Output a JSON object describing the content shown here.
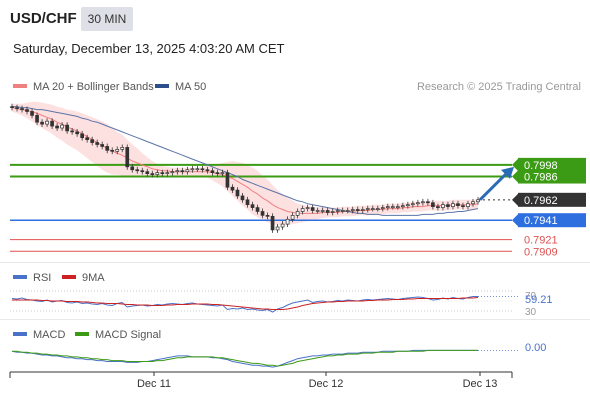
{
  "header": {
    "symbol": "USD/CHF",
    "timeframe": "30 MIN",
    "datetime": "Saturday, December 13, 2025 4:03:20 AM CET"
  },
  "legend_main": [
    {
      "label": "MA 20 + Bollinger Bands",
      "color": "#f08080"
    },
    {
      "label": "MA 50",
      "color": "#2c4f8c"
    }
  ],
  "credit": "Research © 2025 Trading Central",
  "levels": [
    {
      "value": 0.7998,
      "label": "0.7998",
      "kind": "resistance",
      "color": "#3c9b14"
    },
    {
      "value": 0.7986,
      "label": "0.7986",
      "kind": "resistance",
      "color": "#3c9b14"
    },
    {
      "value": 0.7962,
      "label": "0.7962",
      "kind": "last",
      "color": "#333333"
    },
    {
      "value": 0.7941,
      "label": "0.7941",
      "kind": "pivot",
      "color": "#2e6fe0"
    },
    {
      "value": 0.7921,
      "label": "0.7921",
      "kind": "support",
      "color": "#e05050"
    },
    {
      "value": 0.7909,
      "label": "0.7909",
      "kind": "support",
      "color": "#e05050"
    }
  ],
  "rsi_panel": {
    "legend": [
      {
        "label": "RSI",
        "color": "#4a72c8"
      },
      {
        "label": "9MA",
        "color": "#cc2222"
      }
    ],
    "level_labels": [
      "70",
      "30"
    ],
    "value_label": "59.21"
  },
  "macd_panel": {
    "legend": [
      {
        "label": "MACD",
        "color": "#4a72c8"
      },
      {
        "label": "MACD Signal",
        "color": "#3c9b14"
      }
    ],
    "value_label": "0.00"
  },
  "x_axis": {
    "labels": [
      "Dec 11",
      "Dec 12",
      "Dec 13"
    ]
  },
  "chart_data": [
    {
      "type": "candlestick",
      "title": "USD/CHF",
      "ylim": [
        0.79,
        0.807
      ],
      "close": [
        0.8057,
        0.8056,
        0.8055,
        0.8053,
        0.8049,
        0.8042,
        0.804,
        0.8043,
        0.8038,
        0.8036,
        0.8039,
        0.8033,
        0.8032,
        0.803,
        0.8026,
        0.8024,
        0.8021,
        0.8019,
        0.8017,
        0.8013,
        0.8012,
        0.8014,
        0.8016,
        0.7996,
        0.7993,
        0.7992,
        0.7991,
        0.7989,
        0.7988,
        0.799,
        0.7989,
        0.799,
        0.7991,
        0.7992,
        0.7991,
        0.7993,
        0.7994,
        0.7994,
        0.7993,
        0.7992,
        0.799,
        0.7989,
        0.799,
        0.7975,
        0.7972,
        0.7966,
        0.7962,
        0.7957,
        0.7954,
        0.795,
        0.7946,
        0.7945,
        0.7931,
        0.7934,
        0.7937,
        0.7942,
        0.7946,
        0.795,
        0.7953,
        0.7954,
        0.7951,
        0.7951,
        0.7951,
        0.7949,
        0.795,
        0.7951,
        0.7951,
        0.7951,
        0.7952,
        0.7951,
        0.7952,
        0.7953,
        0.7953,
        0.7953,
        0.7954,
        0.7955,
        0.7955,
        0.7955,
        0.7956,
        0.7957,
        0.7958,
        0.7959,
        0.796,
        0.7959,
        0.7955,
        0.7954,
        0.7957,
        0.7955,
        0.7958,
        0.7956,
        0.7955,
        0.7958,
        0.796,
        0.7962
      ],
      "ma20": [
        0.8057,
        0.8056,
        0.8055,
        0.8054,
        0.8053,
        0.8051,
        0.8049,
        0.8047,
        0.8045,
        0.8042,
        0.804,
        0.8037,
        0.8035,
        0.8033,
        0.803,
        0.8027,
        0.8024,
        0.8021,
        0.8018,
        0.8015,
        0.8012,
        0.801,
        0.8008,
        0.8005,
        0.8002,
        0.8,
        0.7998,
        0.7996,
        0.7994,
        0.7993,
        0.7992,
        0.7992,
        0.7991,
        0.7991,
        0.7991,
        0.7991,
        0.7991,
        0.7991,
        0.7991,
        0.7991,
        0.799,
        0.7989,
        0.7988,
        0.7986,
        0.7984,
        0.7981,
        0.7978,
        0.7975,
        0.7971,
        0.7968,
        0.7964,
        0.7961,
        0.7957,
        0.7954,
        0.7952,
        0.795,
        0.7949,
        0.7948,
        0.7948,
        0.7948,
        0.7948,
        0.7948,
        0.7949,
        0.7949,
        0.7949,
        0.7949,
        0.795,
        0.795,
        0.795,
        0.7951,
        0.7951,
        0.7951,
        0.7952,
        0.7952,
        0.7952,
        0.7953,
        0.7953,
        0.7953,
        0.7954,
        0.7954,
        0.7955,
        0.7955,
        0.7955,
        0.7956,
        0.7956,
        0.7956,
        0.7956,
        0.7956,
        0.7957,
        0.7957,
        0.7957,
        0.7957,
        0.7957,
        0.7958
      ],
      "ma50": [
        0.8058,
        0.8058,
        0.8057,
        0.8057,
        0.8056,
        0.8055,
        0.8055,
        0.8054,
        0.8053,
        0.8052,
        0.8051,
        0.805,
        0.8049,
        0.8048,
        0.8046,
        0.8045,
        0.8043,
        0.8042,
        0.804,
        0.8038,
        0.8036,
        0.8034,
        0.8032,
        0.803,
        0.8028,
        0.8026,
        0.8024,
        0.8022,
        0.802,
        0.8018,
        0.8016,
        0.8014,
        0.8012,
        0.801,
        0.8008,
        0.8006,
        0.8004,
        0.8002,
        0.8,
        0.7998,
        0.7996,
        0.7994,
        0.7992,
        0.799,
        0.7988,
        0.7986,
        0.7983,
        0.7981,
        0.7979,
        0.7977,
        0.7975,
        0.7973,
        0.7971,
        0.7969,
        0.7967,
        0.7965,
        0.7963,
        0.7961,
        0.796,
        0.7958,
        0.7957,
        0.7956,
        0.7955,
        0.7954,
        0.7953,
        0.7952,
        0.7951,
        0.795,
        0.7949,
        0.7948,
        0.7948,
        0.7947,
        0.7947,
        0.7947,
        0.7946,
        0.7946,
        0.7946,
        0.7946,
        0.7946,
        0.7946,
        0.7946,
        0.7946,
        0.7947,
        0.7947,
        0.7947,
        0.7948,
        0.7948,
        0.7949,
        0.7949,
        0.795,
        0.795,
        0.7951,
        0.7952,
        0.7953
      ],
      "bollinger_width": [
        0.0004,
        0.0005,
        0.0006,
        0.0008,
        0.001,
        0.0012,
        0.0013,
        0.0014,
        0.0015,
        0.0016,
        0.0017,
        0.0018,
        0.0019,
        0.002,
        0.0021,
        0.0022,
        0.0023,
        0.0024,
        0.0025,
        0.0025,
        0.0024,
        0.0022,
        0.0021,
        0.0019,
        0.0017,
        0.0015,
        0.0012,
        0.001,
        0.0008,
        0.0006,
        0.0005,
        0.0004,
        0.0004,
        0.0004,
        0.0004,
        0.0004,
        0.0004,
        0.0004,
        0.0005,
        0.0006,
        0.0008,
        0.001,
        0.0012,
        0.0015,
        0.0018,
        0.002,
        0.0022,
        0.0023,
        0.0024,
        0.0024,
        0.0023,
        0.0022,
        0.002,
        0.0018,
        0.0016,
        0.0014,
        0.0012,
        0.001,
        0.0009,
        0.0008,
        0.0007,
        0.0006,
        0.0006,
        0.0005,
        0.0005,
        0.0005,
        0.0005,
        0.0005,
        0.0005,
        0.0005,
        0.0005,
        0.0005,
        0.0005,
        0.0005,
        0.0005,
        0.0005,
        0.0005,
        0.0005,
        0.0005,
        0.0005,
        0.0005,
        0.0005,
        0.0005,
        0.0005,
        0.0005,
        0.0005,
        0.0005,
        0.0005,
        0.0005,
        0.0005,
        0.0005,
        0.0005,
        0.0005,
        0.0005
      ],
      "projection_target": 0.7998
    },
    {
      "type": "line",
      "title": "RSI",
      "ylim": [
        20,
        80
      ],
      "levels": [
        70,
        30
      ],
      "rsi": [
        55,
        54,
        56,
        53,
        52,
        50,
        49,
        52,
        48,
        50,
        51,
        47,
        46,
        48,
        45,
        46,
        44,
        43,
        45,
        42,
        41,
        45,
        47,
        38,
        40,
        41,
        42,
        40,
        41,
        43,
        42,
        44,
        45,
        44,
        43,
        45,
        46,
        44,
        43,
        42,
        41,
        40,
        42,
        33,
        35,
        34,
        36,
        33,
        34,
        32,
        31,
        33,
        28,
        34,
        37,
        42,
        46,
        48,
        50,
        52,
        47,
        49,
        50,
        48,
        49,
        51,
        50,
        52,
        51,
        50,
        52,
        53,
        52,
        53,
        54,
        55,
        54,
        53,
        55,
        56,
        57,
        58,
        57,
        55,
        52,
        53,
        56,
        54,
        57,
        55,
        54,
        57,
        59,
        59
      ],
      "ma9": [
        52,
        52,
        52,
        52,
        52,
        52,
        51,
        51,
        50,
        50,
        50,
        49,
        49,
        49,
        48,
        48,
        47,
        46,
        46,
        45,
        45,
        45,
        44,
        43,
        43,
        42,
        42,
        42,
        41,
        41,
        41,
        42,
        42,
        43,
        43,
        43,
        44,
        44,
        44,
        44,
        43,
        43,
        42,
        41,
        40,
        39,
        38,
        37,
        36,
        35,
        34,
        34,
        33,
        33,
        33,
        34,
        36,
        38,
        41,
        43,
        45,
        46,
        47,
        48,
        48,
        49,
        49,
        50,
        50,
        50,
        50,
        51,
        51,
        52,
        52,
        52,
        53,
        53,
        53,
        54,
        54,
        55,
        55,
        55,
        55,
        55,
        55,
        55,
        55,
        55,
        56,
        56,
        56,
        57
      ]
    },
    {
      "type": "line",
      "title": "MACD",
      "ylim": [
        -0.0018,
        0.001
      ],
      "macd": [
        0.0,
        -0.0001,
        -0.0001,
        -0.0002,
        -0.0002,
        -0.0003,
        -0.0004,
        -0.0004,
        -0.0005,
        -0.0005,
        -0.0006,
        -0.0007,
        -0.0007,
        -0.0008,
        -0.0008,
        -0.0009,
        -0.0009,
        -0.001,
        -0.001,
        -0.0011,
        -0.0011,
        -0.0011,
        -0.0011,
        -0.0012,
        -0.0012,
        -0.0012,
        -0.0011,
        -0.0011,
        -0.001,
        -0.0009,
        -0.0008,
        -0.0007,
        -0.0006,
        -0.0005,
        -0.0005,
        -0.0005,
        -0.0006,
        -0.0006,
        -0.0006,
        -0.0006,
        -0.0007,
        -0.0007,
        -0.0008,
        -0.0009,
        -0.0011,
        -0.0012,
        -0.0013,
        -0.0014,
        -0.0015,
        -0.0015,
        -0.0016,
        -0.0016,
        -0.0017,
        -0.0016,
        -0.0014,
        -0.0012,
        -0.001,
        -0.0008,
        -0.0007,
        -0.0006,
        -0.0005,
        -0.0005,
        -0.0004,
        -0.0004,
        -0.0003,
        -0.0003,
        -0.0003,
        -0.0002,
        -0.0002,
        -0.0002,
        -0.0001,
        -0.0001,
        -0.0001,
        -0.0001,
        0.0,
        0.0,
        0.0,
        0.0,
        0.0,
        0.0,
        0.0001,
        0.0001,
        0.0001,
        0.0001,
        0.0001,
        0.0001,
        0.0001,
        0.0001,
        0.0001,
        0.0001,
        0.0001,
        0.0001,
        0.0001,
        0.0001
      ],
      "signal": [
        0.0,
        0.0,
        -0.0001,
        -0.0001,
        -0.0002,
        -0.0002,
        -0.0003,
        -0.0003,
        -0.0004,
        -0.0004,
        -0.0005,
        -0.0005,
        -0.0006,
        -0.0006,
        -0.0007,
        -0.0007,
        -0.0008,
        -0.0008,
        -0.0009,
        -0.0009,
        -0.001,
        -0.001,
        -0.001,
        -0.0011,
        -0.0011,
        -0.0011,
        -0.0011,
        -0.0011,
        -0.0011,
        -0.001,
        -0.001,
        -0.0009,
        -0.0008,
        -0.0007,
        -0.0007,
        -0.0006,
        -0.0006,
        -0.0006,
        -0.0006,
        -0.0006,
        -0.0006,
        -0.0007,
        -0.0007,
        -0.0008,
        -0.0009,
        -0.001,
        -0.0011,
        -0.0012,
        -0.0013,
        -0.0013,
        -0.0014,
        -0.0015,
        -0.0015,
        -0.0016,
        -0.0015,
        -0.0014,
        -0.0013,
        -0.0011,
        -0.001,
        -0.0009,
        -0.0008,
        -0.0007,
        -0.0006,
        -0.0005,
        -0.0005,
        -0.0004,
        -0.0004,
        -0.0003,
        -0.0003,
        -0.0003,
        -0.0002,
        -0.0002,
        -0.0002,
        -0.0001,
        -0.0001,
        -0.0001,
        -0.0001,
        0.0,
        0.0,
        0.0,
        0.0,
        0.0,
        0.0,
        0.0001,
        0.0001,
        0.0001,
        0.0001,
        0.0001,
        0.0001,
        0.0001,
        0.0001,
        0.0001,
        0.0001,
        0.0001
      ]
    }
  ]
}
